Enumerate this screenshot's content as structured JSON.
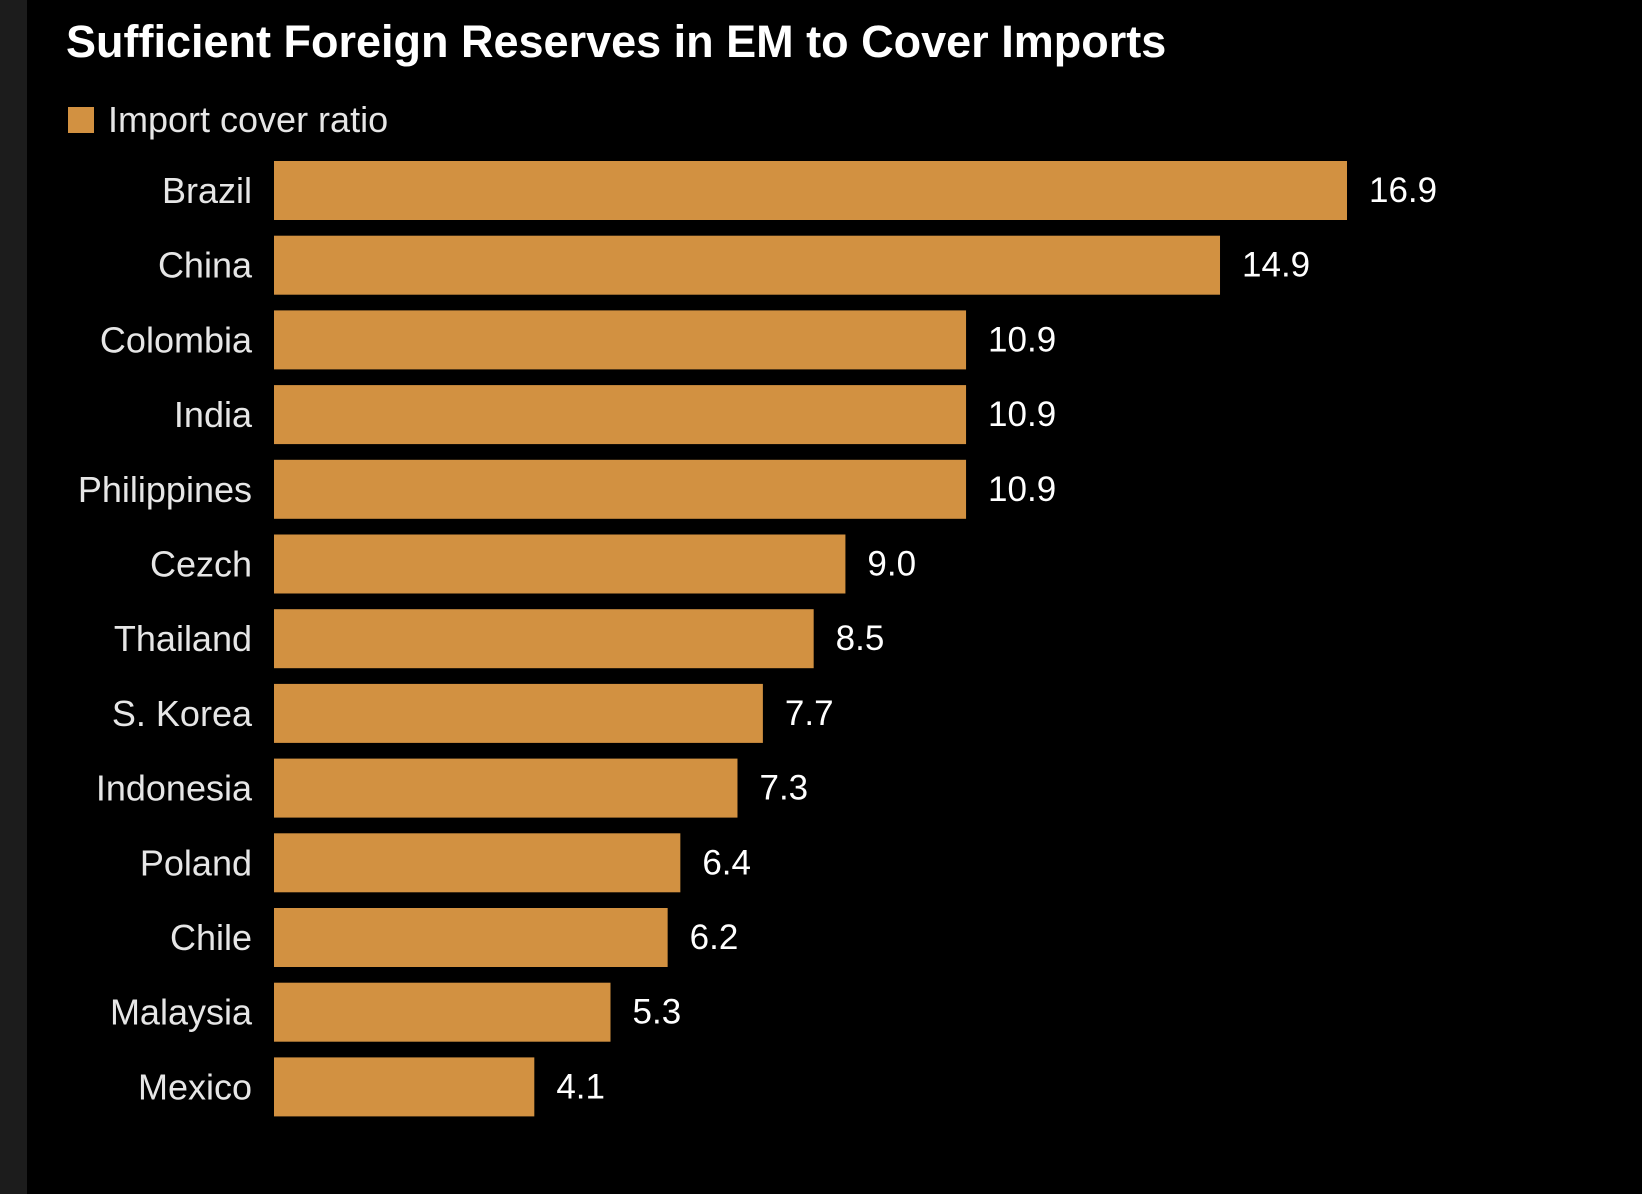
{
  "chart_data": {
    "type": "bar",
    "orientation": "horizontal",
    "title": "Sufficient Foreign Reserves in EM to Cover Imports",
    "legend": [
      "Import cover ratio"
    ],
    "categories": [
      "Brazil",
      "China",
      "Colombia",
      "India",
      "Philippines",
      "Cezch",
      "Thailand",
      "S. Korea",
      "Indonesia",
      "Poland",
      "Chile",
      "Malaysia",
      "Mexico"
    ],
    "series": [
      {
        "name": "Import cover ratio",
        "values": [
          16.9,
          14.9,
          10.9,
          10.9,
          10.9,
          9.0,
          8.5,
          7.7,
          7.3,
          6.4,
          6.2,
          5.3,
          4.1
        ],
        "labels": [
          "16.9",
          "14.9",
          "10.9",
          "10.9",
          "10.9",
          "9.0",
          "8.5",
          "7.7",
          "7.3",
          "6.4",
          "6.2",
          "5.3",
          "4.1"
        ]
      }
    ],
    "xlim": [
      0,
      16.9
    ],
    "xlabel": "",
    "ylabel": "",
    "grid": false,
    "legend_position": "top-left"
  },
  "colors": {
    "bar": "#d29141",
    "background": "#000000",
    "text": "#e6e6e6"
  }
}
